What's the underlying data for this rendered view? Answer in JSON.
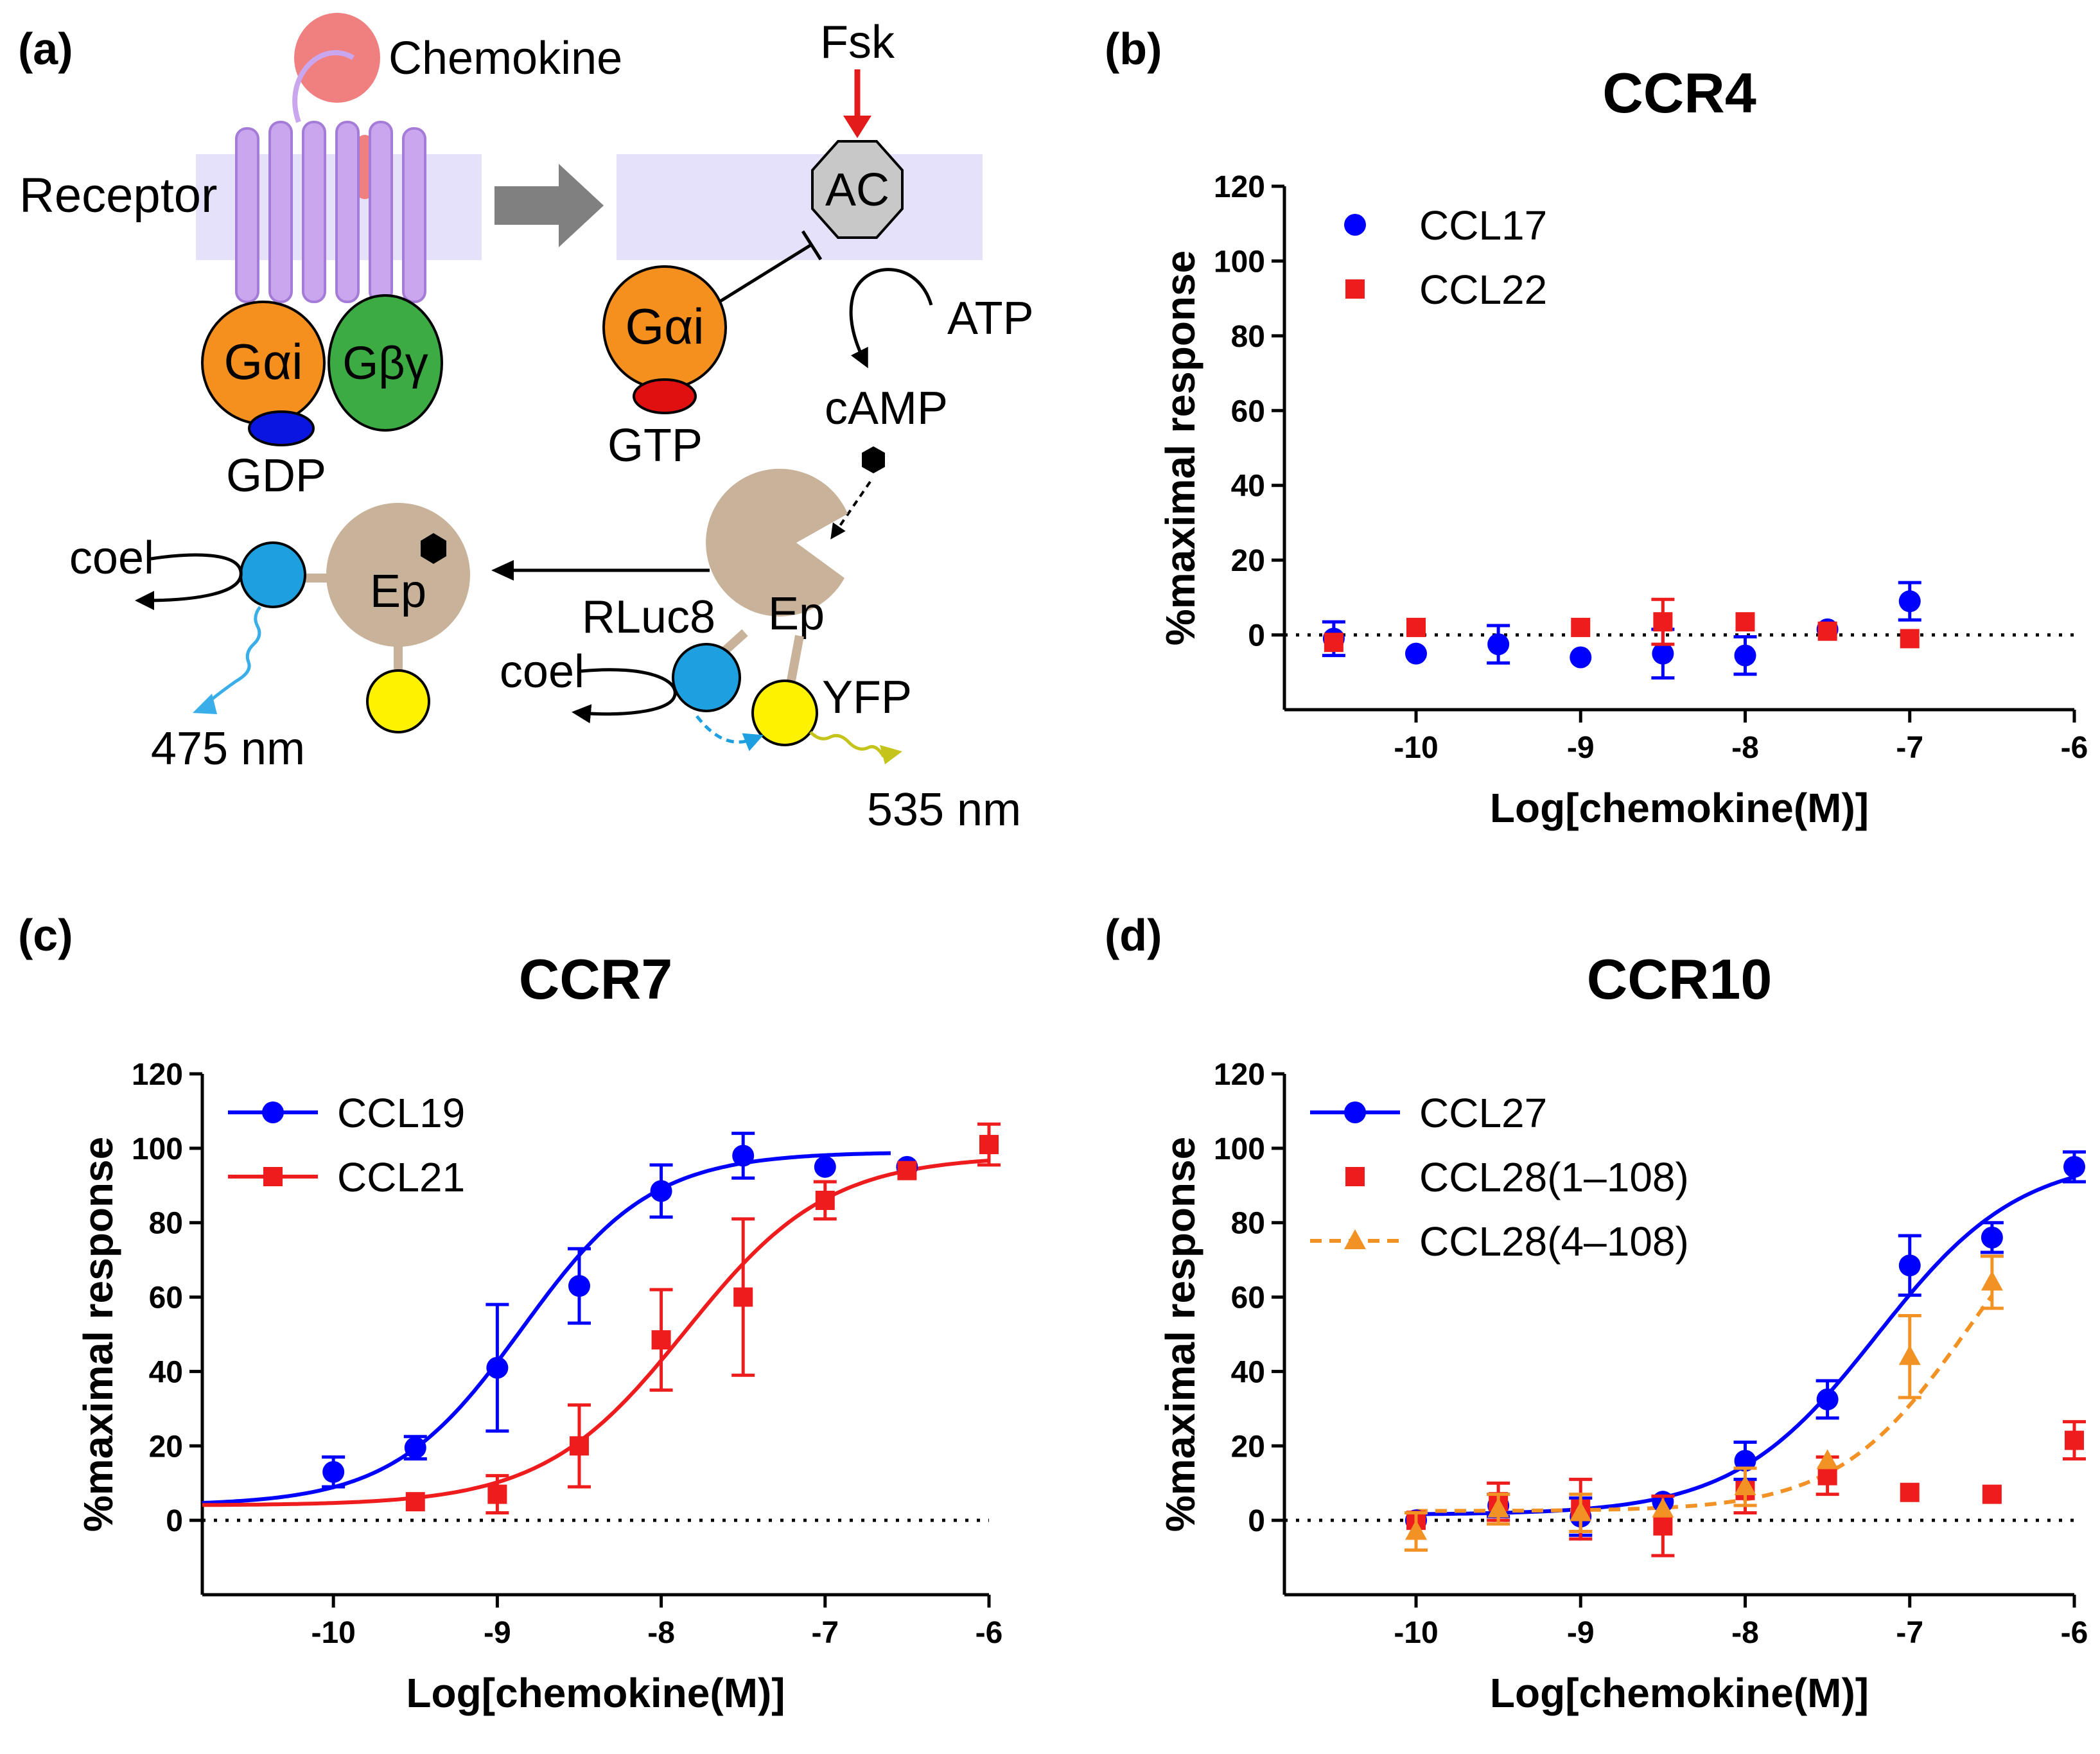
{
  "panel_a": {
    "panel_label": "(a)",
    "chemokine": "Chemokine",
    "fsk": "Fsk",
    "receptor": "Receptor",
    "ac": "AC",
    "galpha_i": "Gαi",
    "gbetagamma": "Gβγ",
    "gdp": "GDP",
    "gtp": "GTP",
    "atp": "ATP",
    "camp": "cAMP",
    "ep": "Ep",
    "coel": "coel",
    "rluc8": "RLuc8",
    "yfp": "YFP",
    "wl_475": "475 nm",
    "wl_535": "535 nm",
    "colors": {
      "chemokine": "#f08080",
      "receptor": "#c9a6ee",
      "membrane": "#e6e1fa",
      "galpha": "#f5901e",
      "gbg": "#3dab44",
      "gdp": "#0a16e0",
      "gtp": "#e01010",
      "ac": "#c8c8c8",
      "ep": "#c8b29a",
      "rluc": "#1ea0e0",
      "yfp": "#fff200",
      "arrow_grey": "#808080",
      "fsk_arrow": "#e31b1b"
    }
  },
  "chart_data": [
    {
      "panel_label": "(b)",
      "title": "CCR4",
      "type": "scatter",
      "xlabel": "Log[chemokine(M)]",
      "ylabel": "%maximal response",
      "xlim": [
        -10.8,
        -6
      ],
      "ylim": [
        -20,
        120
      ],
      "xticks": [
        -10,
        -9,
        -8,
        -7,
        -6
      ],
      "yticks": [
        0,
        20,
        40,
        60,
        80,
        100,
        120
      ],
      "xtick_labels": [
        "-10",
        "-9",
        "-8",
        "-7",
        "-6"
      ],
      "ytick_labels": [
        "0",
        "20",
        "40",
        "60",
        "80",
        "100",
        "120"
      ],
      "zero_line": true,
      "legend_position": "top-left",
      "series": [
        {
          "name": "CCL17",
          "color": "#0000ff",
          "marker": "circle",
          "fit": "none",
          "x": [
            -10.5,
            -10,
            -9.5,
            -9,
            -8.5,
            -8,
            -7.5,
            -7
          ],
          "y": [
            -1,
            -5,
            -2.5,
            -6,
            -5,
            -5.5,
            1.5,
            9
          ],
          "err": [
            4.5,
            0,
            5,
            0,
            6.5,
            5,
            0,
            5
          ]
        },
        {
          "name": "CCL22",
          "color": "#ee1c1c",
          "marker": "square",
          "fit": "none",
          "x": [
            -10.5,
            -10,
            -9,
            -8.5,
            -8,
            -7.5,
            -7
          ],
          "y": [
            -2,
            2,
            2,
            3.5,
            3.5,
            1,
            -1
          ],
          "err": [
            0,
            0,
            0,
            6,
            0,
            0,
            0
          ]
        }
      ]
    },
    {
      "panel_label": "(c)",
      "title": "CCR7",
      "type": "line",
      "xlabel": "Log[chemokine(M)]",
      "ylabel": "%maximal response",
      "xlim": [
        -10.8,
        -6
      ],
      "ylim": [
        -20,
        120
      ],
      "xticks": [
        -10,
        -9,
        -8,
        -7,
        -6
      ],
      "yticks": [
        0,
        20,
        40,
        60,
        80,
        100,
        120
      ],
      "xtick_labels": [
        "-10",
        "-9",
        "-8",
        "-7",
        "-6"
      ],
      "ytick_labels": [
        "0",
        "20",
        "40",
        "60",
        "80",
        "100",
        "120"
      ],
      "zero_line": true,
      "legend_position": "top-left",
      "series": [
        {
          "name": "CCL19",
          "color": "#0000ff",
          "marker": "circle",
          "fit": "solid",
          "x": [
            -10,
            -9.5,
            -9,
            -8.5,
            -8,
            -7.5,
            -7,
            -6.5
          ],
          "y": [
            13,
            19.5,
            41,
            63,
            88.5,
            98,
            95,
            95
          ],
          "err": [
            4,
            3,
            17,
            10,
            7,
            6,
            0,
            0
          ],
          "curve": {
            "bottom": 4,
            "top": 99,
            "logEC50": -8.85,
            "hill": 1.1,
            "x_range": [
              -10.8,
              -6.6
            ]
          }
        },
        {
          "name": "CCL21",
          "color": "#ee1c1c",
          "marker": "square",
          "fit": "solid",
          "x": [
            -9.5,
            -9,
            -8.5,
            -8,
            -7.5,
            -7,
            -6.5,
            -6
          ],
          "y": [
            5,
            7,
            20,
            48.5,
            60,
            86,
            94,
            101
          ],
          "err": [
            0,
            5,
            11,
            13.5,
            21,
            5,
            0,
            5.5
          ],
          "curve": {
            "bottom": 4,
            "top": 98,
            "logEC50": -7.85,
            "hill": 1.0,
            "x_range": [
              -10.8,
              -6
            ]
          }
        }
      ]
    },
    {
      "panel_label": "(d)",
      "title": "CCR10",
      "type": "line",
      "xlabel": "Log[chemokine(M)]",
      "ylabel": "%maximal response",
      "xlim": [
        -10.8,
        -6
      ],
      "ylim": [
        -20,
        120
      ],
      "xticks": [
        -10,
        -9,
        -8,
        -7,
        -6
      ],
      "yticks": [
        0,
        20,
        40,
        60,
        80,
        100,
        120
      ],
      "xtick_labels": [
        "-10",
        "-9",
        "-8",
        "-7",
        "-6"
      ],
      "ytick_labels": [
        "0",
        "20",
        "40",
        "60",
        "80",
        "100",
        "120"
      ],
      "zero_line": true,
      "legend_position": "top-left",
      "series": [
        {
          "name": "CCL27",
          "color": "#0000ff",
          "marker": "circle",
          "fit": "solid",
          "x": [
            -10,
            -9.5,
            -9,
            -8.5,
            -8,
            -7.5,
            -7,
            -6.5,
            -6
          ],
          "y": [
            0,
            4,
            1,
            5,
            16,
            32.5,
            68.5,
            76,
            95
          ],
          "err": [
            0,
            3,
            5,
            0,
            5,
            5,
            8,
            4,
            4
          ],
          "curve": {
            "bottom": 1.5,
            "top": 98,
            "logEC50": -7.2,
            "hill": 1.0,
            "x_range": [
              -10,
              -6
            ]
          }
        },
        {
          "name": "CCL28(1–108)",
          "color": "#ee1c1c",
          "marker": "square",
          "fit": "none",
          "x": [
            -10,
            -9.5,
            -9,
            -8.5,
            -8,
            -7.5,
            -7,
            -6.5,
            -6
          ],
          "y": [
            0,
            5,
            3,
            -1.5,
            8,
            12,
            7.5,
            7,
            21.5
          ],
          "err": [
            0,
            5,
            8,
            8,
            6,
            5,
            0,
            0,
            5
          ]
        },
        {
          "name": "CCL28(4–108)",
          "color": "#f39224",
          "marker": "triangle",
          "fit": "dashed",
          "x": [
            -10,
            -9.5,
            -9,
            -8.5,
            -8,
            -7.5,
            -7,
            -6.5
          ],
          "y": [
            -3,
            3,
            2,
            3,
            9,
            16,
            44,
            64
          ],
          "err": [
            5,
            4,
            5,
            0,
            5,
            0,
            11,
            7
          ],
          "curve": {
            "bottom": 2.5,
            "top": 100,
            "logEC50": -6.65,
            "hill": 1.1,
            "x_range": [
              -10,
              -6.5
            ]
          }
        }
      ]
    }
  ]
}
